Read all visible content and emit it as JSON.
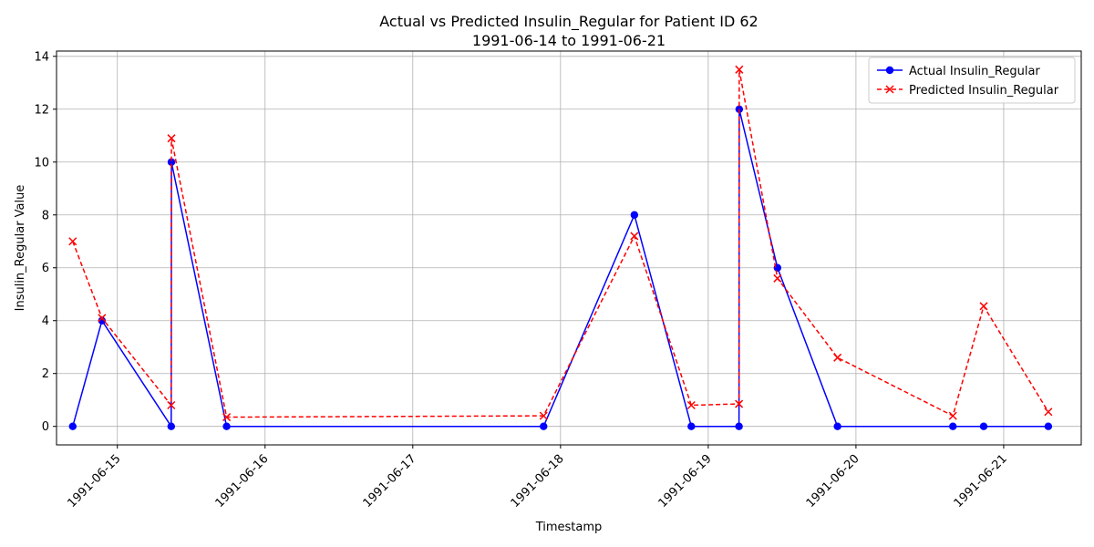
{
  "chart_data": {
    "type": "line",
    "title": "Actual vs Predicted Insulin_Regular for Patient ID 62",
    "subtitle": "1991-06-14 to 1991-06-21",
    "xlabel": "Timestamp",
    "ylabel": "Insulin_Regular Value",
    "x_tick_labels": [
      "1991-06-15",
      "1991-06-16",
      "1991-06-17",
      "1991-06-18",
      "1991-06-19",
      "1991-06-20",
      "1991-06-21"
    ],
    "y_ticks": [
      0,
      2,
      4,
      6,
      8,
      10,
      12,
      14
    ],
    "xlim": [
      "1991-06-14 14:07",
      "1991-06-21 12:36"
    ],
    "ylim": [
      -0.7,
      14.2
    ],
    "grid": true,
    "legend_position": "top-right",
    "series": [
      {
        "name": "Actual Insulin_Regular",
        "color": "#0000ff",
        "line_style": "solid",
        "marker": "circle",
        "points": [
          {
            "x": "1991-06-14 16:45",
            "y": 0
          },
          {
            "x": "1991-06-14 21:30",
            "y": 4
          },
          {
            "x": "1991-06-15 08:45",
            "y": 0
          },
          {
            "x": "1991-06-15 08:47",
            "y": 10
          },
          {
            "x": "1991-06-15 17:45",
            "y": 0
          },
          {
            "x": "1991-06-17 21:15",
            "y": 0
          },
          {
            "x": "1991-06-18 12:00",
            "y": 8
          },
          {
            "x": "1991-06-18 21:15",
            "y": 0
          },
          {
            "x": "1991-06-19 05:00",
            "y": 0
          },
          {
            "x": "1991-06-19 05:02",
            "y": 12
          },
          {
            "x": "1991-06-19 11:15",
            "y": 6
          },
          {
            "x": "1991-06-19 21:00",
            "y": 0
          },
          {
            "x": "1991-06-20 15:45",
            "y": 0
          },
          {
            "x": "1991-06-20 20:45",
            "y": 0
          },
          {
            "x": "1991-06-21 07:15",
            "y": 0
          }
        ]
      },
      {
        "name": "Predicted Insulin_Regular",
        "color": "#ff0000",
        "line_style": "dashed",
        "marker": "x",
        "points": [
          {
            "x": "1991-06-14 16:45",
            "y": 7.0
          },
          {
            "x": "1991-06-14 21:30",
            "y": 4.1
          },
          {
            "x": "1991-06-15 08:45",
            "y": 0.8
          },
          {
            "x": "1991-06-15 08:47",
            "y": 10.9
          },
          {
            "x": "1991-06-15 17:45",
            "y": 0.35
          },
          {
            "x": "1991-06-17 21:15",
            "y": 0.4
          },
          {
            "x": "1991-06-18 12:00",
            "y": 7.2
          },
          {
            "x": "1991-06-18 21:15",
            "y": 0.8
          },
          {
            "x": "1991-06-19 05:00",
            "y": 0.85
          },
          {
            "x": "1991-06-19 05:02",
            "y": 13.5
          },
          {
            "x": "1991-06-19 11:15",
            "y": 5.6
          },
          {
            "x": "1991-06-19 21:00",
            "y": 2.6
          },
          {
            "x": "1991-06-20 15:45",
            "y": 0.4
          },
          {
            "x": "1991-06-20 20:45",
            "y": 4.55
          },
          {
            "x": "1991-06-21 07:15",
            "y": 0.55
          }
        ]
      }
    ]
  }
}
